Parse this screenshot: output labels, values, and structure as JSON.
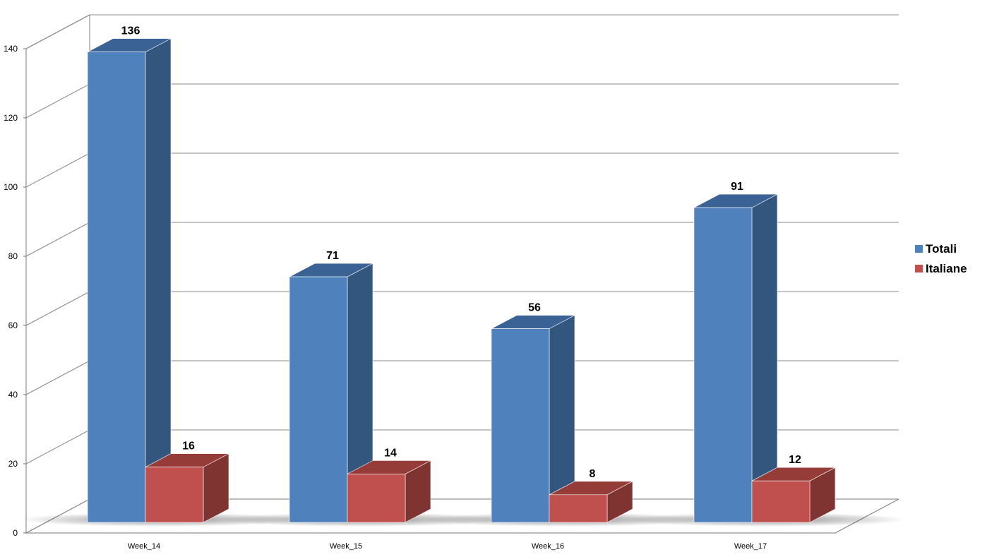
{
  "chart_data": {
    "type": "bar",
    "categories": [
      "Week_14",
      "Week_15",
      "Week_16",
      "Week_17"
    ],
    "series": [
      {
        "name": "Totali",
        "values": [
          136,
          71,
          56,
          91
        ],
        "color": "#4F81BD",
        "side_color": "#33567F",
        "top_color": "#3A6294"
      },
      {
        "name": "Italiane",
        "values": [
          16,
          14,
          8,
          12
        ],
        "color": "#C0504D",
        "side_color": "#7F3432",
        "top_color": "#953B38"
      }
    ],
    "y_ticks": [
      "0",
      "20",
      "40",
      "60",
      "80",
      "100",
      "120",
      "140"
    ],
    "ylim": [
      0,
      140
    ],
    "grid": true,
    "legend_position": "right",
    "three_d": true
  }
}
